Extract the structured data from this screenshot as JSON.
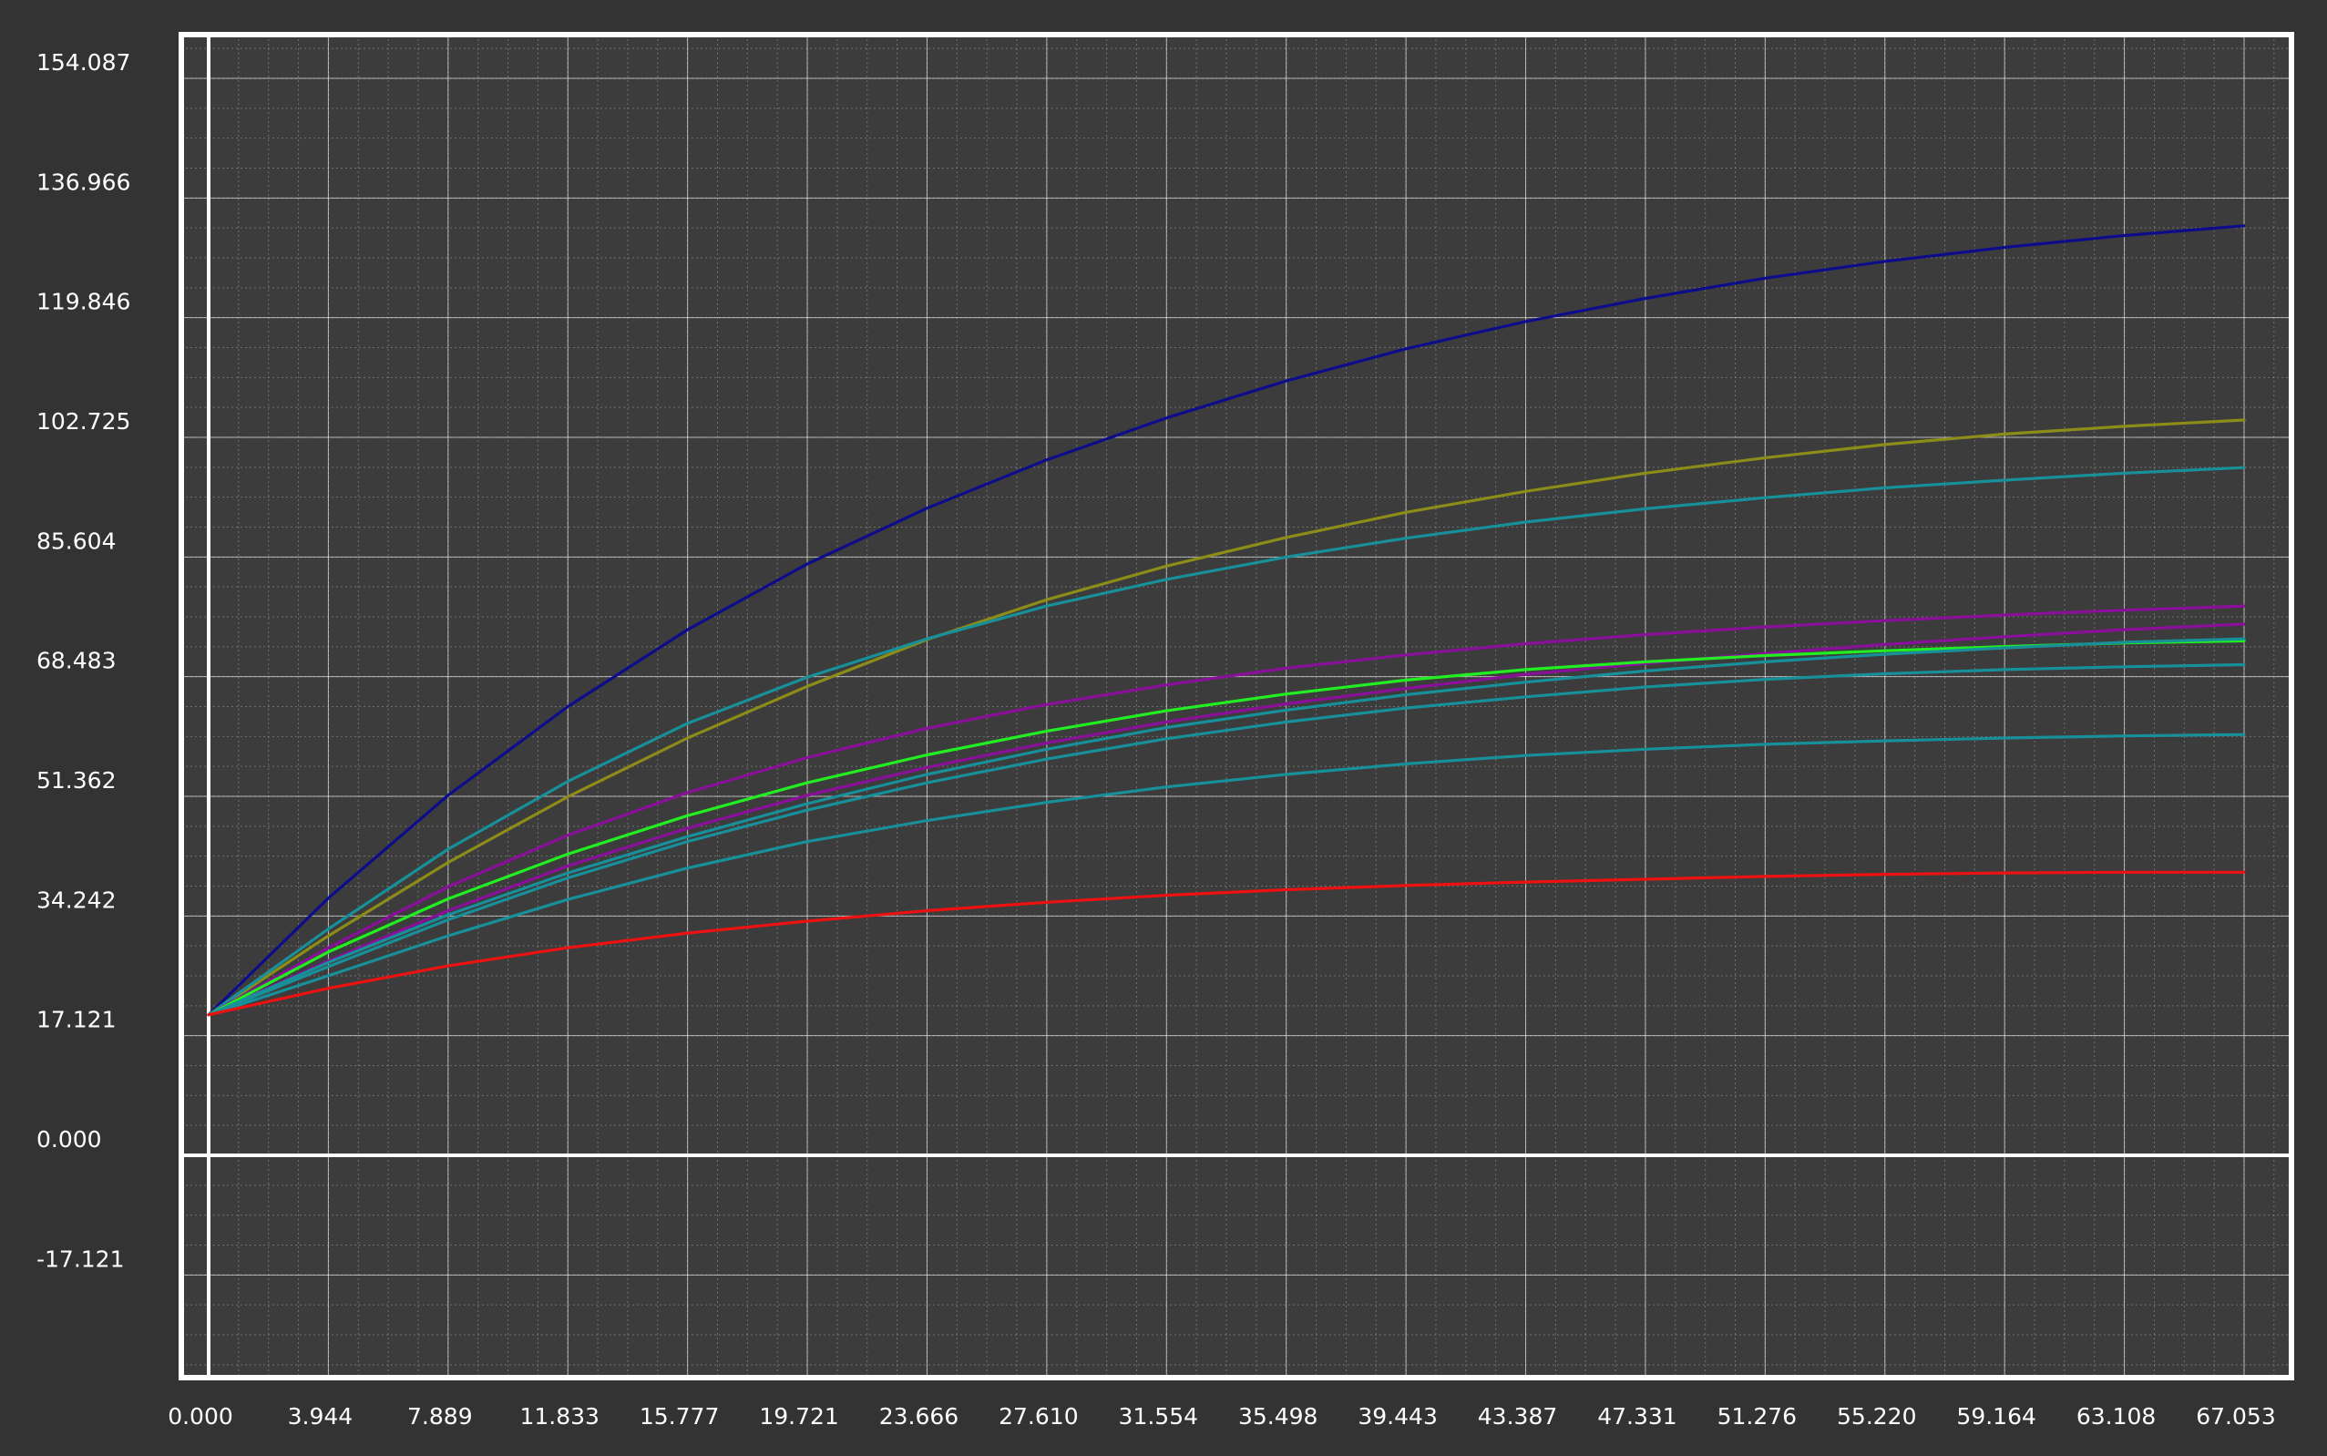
{
  "chart_data": {
    "type": "line",
    "title": "",
    "xlabel": "",
    "ylabel": "",
    "xlim": [
      0,
      67.053
    ],
    "ylim": [
      -17.121,
      154.087
    ],
    "x_ticks": [
      "0.000",
      "3.944",
      "7.889",
      "11.833",
      "15.777",
      "19.721",
      "23.666",
      "27.610",
      "31.554",
      "35.498",
      "39.443",
      "43.387",
      "47.331",
      "51.276",
      "55.220",
      "59.164",
      "63.108",
      "67.053"
    ],
    "y_ticks": [
      "154.087",
      "136.966",
      "119.846",
      "102.725",
      "85.604",
      "68.483",
      "51.362",
      "34.242",
      "17.121",
      "0.000",
      "-17.121"
    ],
    "grid": true,
    "x": [
      0,
      3.944,
      7.889,
      11.833,
      15.777,
      19.721,
      23.666,
      27.61,
      31.554,
      35.498,
      39.443,
      43.387,
      47.331,
      51.276,
      55.22,
      59.164,
      63.108,
      67.053
    ],
    "series": [
      {
        "color": "#0d0d8c",
        "values": [
          20.1,
          36.8,
          51.5,
          64.2,
          75.2,
          84.6,
          92.6,
          99.5,
          105.5,
          110.8,
          115.4,
          119.3,
          122.6,
          125.5,
          127.9,
          129.9,
          131.6,
          133.0
        ]
      },
      {
        "color": "#8c8c18",
        "values": [
          20.1,
          31.4,
          41.9,
          51.3,
          59.7,
          67.1,
          73.8,
          79.5,
          84.3,
          88.4,
          92.0,
          95.0,
          97.6,
          99.8,
          101.7,
          103.2,
          104.3,
          105.2
        ]
      },
      {
        "color": "#17909a",
        "values": [
          20.1,
          32.4,
          43.8,
          53.5,
          61.8,
          68.4,
          73.9,
          78.6,
          82.4,
          85.6,
          88.3,
          90.6,
          92.5,
          94.1,
          95.5,
          96.6,
          97.6,
          98.4
        ]
      },
      {
        "color": "#8a0f9a",
        "values": [
          20.1,
          29.7,
          38.4,
          45.8,
          51.9,
          56.9,
          61.1,
          64.5,
          67.3,
          69.7,
          71.6,
          73.2,
          74.5,
          75.6,
          76.5,
          77.3,
          78.0,
          78.6
        ]
      },
      {
        "color": "#8a0f9a",
        "values": [
          20.1,
          27.8,
          35.0,
          41.4,
          46.8,
          51.5,
          55.5,
          59.0,
          62.0,
          64.6,
          66.8,
          68.8,
          70.4,
          71.8,
          73.1,
          74.2,
          75.2,
          76.0
        ]
      },
      {
        "color": "#22ee22",
        "values": [
          20.1,
          29.1,
          36.7,
          43.1,
          48.6,
          53.3,
          57.3,
          60.7,
          63.6,
          66.0,
          68.0,
          69.5,
          70.6,
          71.5,
          72.2,
          72.8,
          73.3,
          73.6
        ]
      },
      {
        "color": "#17909a",
        "values": [
          20.1,
          27.6,
          34.4,
          40.4,
          45.6,
          50.3,
          54.5,
          58.1,
          61.2,
          63.7,
          65.9,
          67.7,
          69.3,
          70.6,
          71.7,
          72.6,
          73.4,
          73.9
        ]
      },
      {
        "color": "#17909a",
        "values": [
          20.1,
          27.0,
          33.7,
          39.7,
          44.9,
          49.4,
          53.3,
          56.7,
          59.6,
          62.0,
          64.0,
          65.6,
          67.0,
          68.1,
          68.9,
          69.5,
          69.9,
          70.2
        ]
      },
      {
        "color": "#17909a",
        "values": [
          20.1,
          25.7,
          31.4,
          36.6,
          41.1,
          44.9,
          47.9,
          50.5,
          52.7,
          54.5,
          56.0,
          57.2,
          58.1,
          58.8,
          59.3,
          59.7,
          60.0,
          60.2
        ]
      },
      {
        "color": "#ee1111",
        "values": [
          20.1,
          23.9,
          27.1,
          29.7,
          31.8,
          33.5,
          35.0,
          36.2,
          37.2,
          38.0,
          38.6,
          39.1,
          39.5,
          39.9,
          40.2,
          40.4,
          40.5,
          40.5
        ]
      }
    ],
    "colors": {
      "background": "#333333",
      "plot_background": "#3c3c3c",
      "frame": "#ffffff",
      "grid_major": "#ffffff",
      "grid_minor": "#9a9a9a",
      "label": "#ffffff"
    }
  }
}
